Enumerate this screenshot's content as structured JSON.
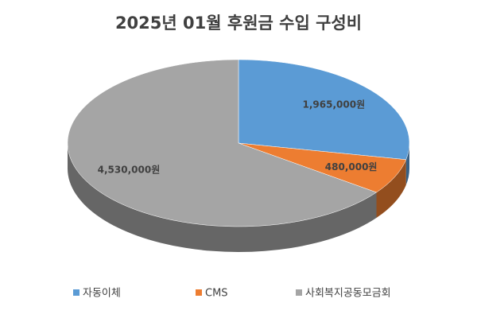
{
  "chart_data": {
    "type": "pie",
    "title": "2025년 01월 후원금 수입 구성비",
    "categories": [
      "자동이체",
      "CMS",
      "사회복지공동모금회"
    ],
    "values": [
      1965000,
      480000,
      4530000
    ],
    "value_labels": [
      "1,965,000원",
      "480,000원",
      "4,530,000원"
    ],
    "colors": [
      "#5b9bd5",
      "#ed7d31",
      "#a5a5a5"
    ]
  }
}
